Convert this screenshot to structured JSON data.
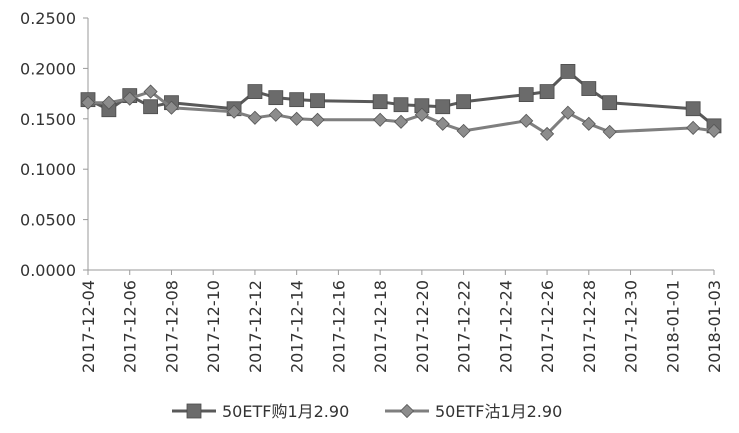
{
  "chart_data": {
    "type": "line",
    "title": "",
    "xlabel": "",
    "ylabel": "",
    "ylim": [
      0,
      0.25
    ],
    "y_ticks": [
      "0.0000",
      "0.0500",
      "0.1000",
      "0.1500",
      "0.2000",
      "0.2500"
    ],
    "x_tick_labels": [
      "2017-12-04",
      "2017-12-06",
      "2017-12-08",
      "2017-12-10",
      "2017-12-12",
      "2017-12-14",
      "2017-12-16",
      "2017-12-18",
      "2017-12-20",
      "2017-12-22",
      "2017-12-24",
      "2017-12-26",
      "2017-12-28",
      "2017-12-30",
      "2018-01-01",
      "2018-01-03"
    ],
    "x_range": [
      "2017-12-04",
      "2018-01-03"
    ],
    "grid": false,
    "legend_position": "bottom",
    "series": [
      {
        "name": "50ETF购1月2.90",
        "color": "#595959",
        "marker": "square",
        "points": [
          {
            "x": "2017-12-04",
            "y": 0.169
          },
          {
            "x": "2017-12-05",
            "y": 0.159
          },
          {
            "x": "2017-12-06",
            "y": 0.173
          },
          {
            "x": "2017-12-07",
            "y": 0.162
          },
          {
            "x": "2017-12-08",
            "y": 0.166
          },
          {
            "x": "2017-12-11",
            "y": 0.16
          },
          {
            "x": "2017-12-12",
            "y": 0.177
          },
          {
            "x": "2017-12-13",
            "y": 0.171
          },
          {
            "x": "2017-12-14",
            "y": 0.169
          },
          {
            "x": "2017-12-15",
            "y": 0.168
          },
          {
            "x": "2017-12-18",
            "y": 0.167
          },
          {
            "x": "2017-12-19",
            "y": 0.164
          },
          {
            "x": "2017-12-20",
            "y": 0.163
          },
          {
            "x": "2017-12-21",
            "y": 0.162
          },
          {
            "x": "2017-12-22",
            "y": 0.167
          },
          {
            "x": "2017-12-25",
            "y": 0.174
          },
          {
            "x": "2017-12-26",
            "y": 0.177
          },
          {
            "x": "2017-12-27",
            "y": 0.197
          },
          {
            "x": "2017-12-28",
            "y": 0.18
          },
          {
            "x": "2017-12-29",
            "y": 0.166
          },
          {
            "x": "2018-01-02",
            "y": 0.16
          },
          {
            "x": "2018-01-03",
            "y": 0.143
          }
        ]
      },
      {
        "name": "50ETF沽1月2.90",
        "color": "#7f7f7f",
        "marker": "diamond",
        "points": [
          {
            "x": "2017-12-04",
            "y": 0.166
          },
          {
            "x": "2017-12-05",
            "y": 0.166
          },
          {
            "x": "2017-12-06",
            "y": 0.17
          },
          {
            "x": "2017-12-07",
            "y": 0.177
          },
          {
            "x": "2017-12-08",
            "y": 0.161
          },
          {
            "x": "2017-12-11",
            "y": 0.157
          },
          {
            "x": "2017-12-12",
            "y": 0.151
          },
          {
            "x": "2017-12-13",
            "y": 0.154
          },
          {
            "x": "2017-12-14",
            "y": 0.15
          },
          {
            "x": "2017-12-15",
            "y": 0.149
          },
          {
            "x": "2017-12-18",
            "y": 0.149
          },
          {
            "x": "2017-12-19",
            "y": 0.147
          },
          {
            "x": "2017-12-20",
            "y": 0.154
          },
          {
            "x": "2017-12-21",
            "y": 0.145
          },
          {
            "x": "2017-12-22",
            "y": 0.138
          },
          {
            "x": "2017-12-25",
            "y": 0.148
          },
          {
            "x": "2017-12-26",
            "y": 0.135
          },
          {
            "x": "2017-12-27",
            "y": 0.156
          },
          {
            "x": "2017-12-28",
            "y": 0.145
          },
          {
            "x": "2017-12-29",
            "y": 0.137
          },
          {
            "x": "2018-01-02",
            "y": 0.141
          },
          {
            "x": "2018-01-03",
            "y": 0.138
          }
        ]
      }
    ]
  }
}
